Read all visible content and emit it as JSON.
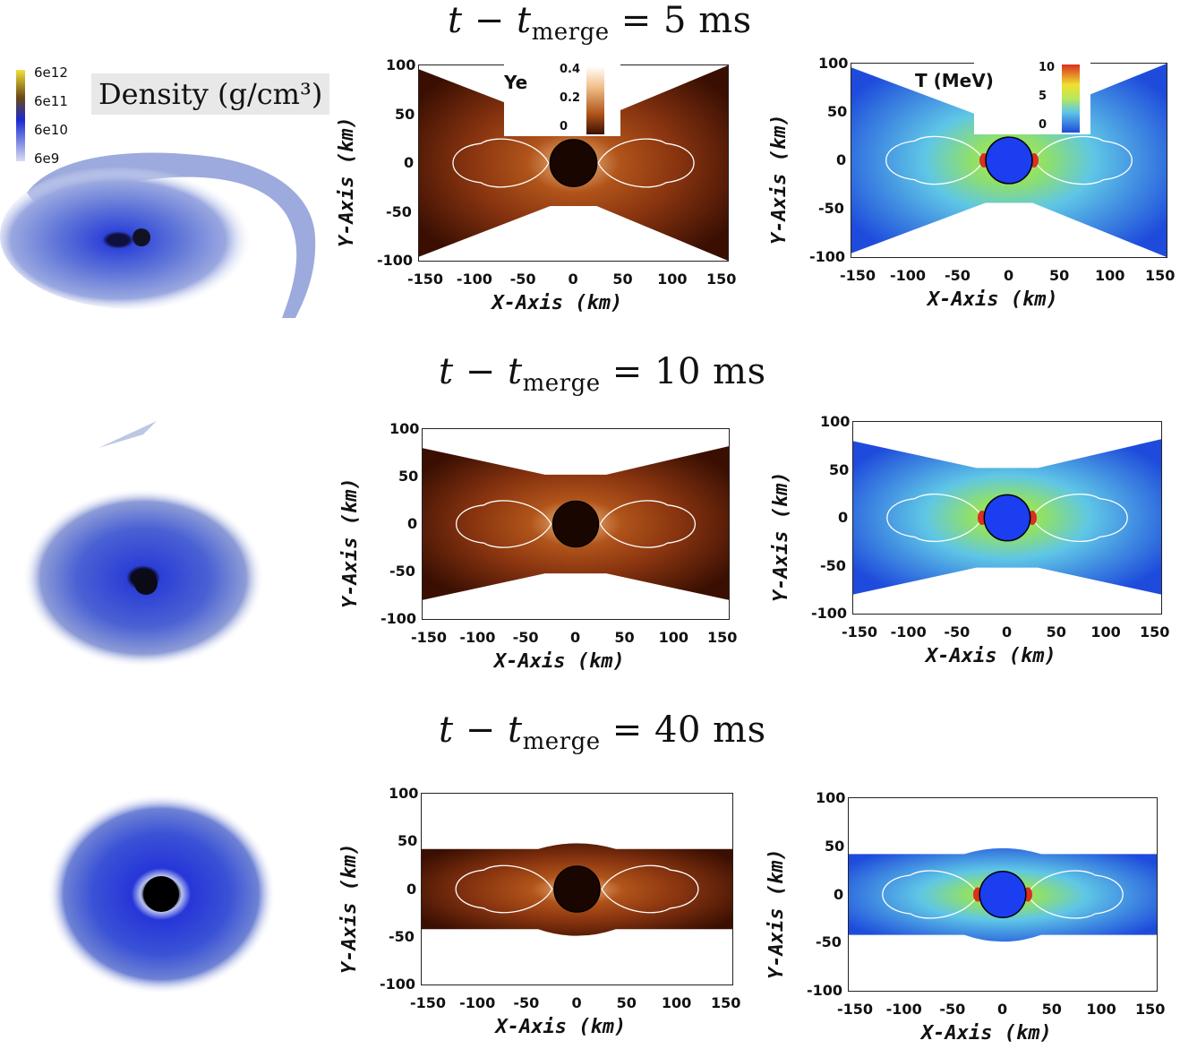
{
  "rows": [
    {
      "time_label": "t − t",
      "sub": "merge",
      "value": " = 5 ms"
    },
    {
      "time_label": "t − t",
      "sub": "merge",
      "value": " = 10 ms"
    },
    {
      "time_label": "t − t",
      "sub": "merge",
      "value": " = 40 ms"
    }
  ],
  "density_legend": {
    "title": "Density (g/cm³)",
    "ticks": [
      "6e12",
      "6e11",
      "6e10",
      "6e9"
    ]
  },
  "ye_colorbar": {
    "label": "Ye",
    "ticks": [
      "0.4",
      "0.2",
      "0"
    ]
  },
  "t_colorbar": {
    "label": "T (MeV)",
    "ticks": [
      "10",
      "5",
      "0"
    ]
  },
  "axes": {
    "xlabel": "X-Axis (km)",
    "ylabel": "Y-Axis (km)",
    "xticks": [
      "-150",
      "-100",
      "-50",
      "0",
      "50",
      "100",
      "150"
    ],
    "yticks": [
      "100",
      "50",
      "0",
      "-50",
      "-100"
    ]
  },
  "colors": {
    "ye_dark": "#3a0f02",
    "ye_mid": "#b0541a",
    "ye_light": "#f2c08c",
    "t_blue": "#1e4bdc",
    "t_cyan": "#5fc6e6",
    "t_green": "#b8e85a",
    "t_red": "#d9301f",
    "disk_blue": "#2f44d8"
  }
}
